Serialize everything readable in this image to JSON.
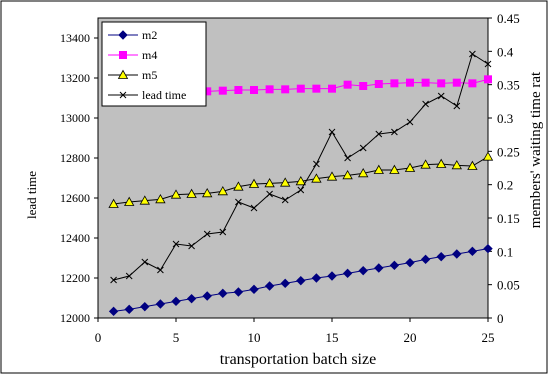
{
  "chart_data": {
    "type": "line",
    "xlabel": "transportation batch size",
    "ylabel_left": "lead time",
    "ylabel_right": "members' waiting time rat",
    "x_ticks": [
      "0",
      "5",
      "10",
      "15",
      "20",
      "25"
    ],
    "y_left_ticks": [
      "12000",
      "12200",
      "12400",
      "12600",
      "12800",
      "13000",
      "13200",
      "13400"
    ],
    "y_right_ticks": [
      "0",
      "0.05",
      "0.1",
      "0.15",
      "0.2",
      "0.25",
      "0.3",
      "0.35",
      "0.4",
      "0.45"
    ],
    "xlim": [
      0,
      25
    ],
    "ylim_left": [
      12000,
      13500
    ],
    "ylim_right": [
      0,
      0.45
    ],
    "grid": false,
    "plot_background": "#c0c0c0",
    "legend_position": "top-left",
    "series": [
      {
        "name": "m2",
        "axis": "right",
        "color": "#000080",
        "marker": "diamond",
        "x": [
          1,
          2,
          3,
          4,
          5,
          6,
          7,
          8,
          9,
          10,
          11,
          12,
          13,
          14,
          15,
          16,
          17,
          18,
          19,
          20,
          21,
          22,
          23,
          24,
          25
        ],
        "values": [
          0.01,
          0.013,
          0.017,
          0.021,
          0.025,
          0.029,
          0.033,
          0.037,
          0.039,
          0.043,
          0.048,
          0.052,
          0.056,
          0.06,
          0.063,
          0.067,
          0.071,
          0.075,
          0.079,
          0.083,
          0.088,
          0.092,
          0.096,
          0.1,
          0.104
        ]
      },
      {
        "name": "m4",
        "axis": "right",
        "color": "#ff00ff",
        "marker": "square",
        "x": [
          7,
          8,
          9,
          10,
          11,
          12,
          13,
          14,
          15,
          16,
          17,
          18,
          19,
          20,
          21,
          22,
          23,
          24,
          25
        ],
        "values": [
          0.34,
          0.341,
          0.342,
          0.342,
          0.343,
          0.343,
          0.344,
          0.344,
          0.344,
          0.35,
          0.348,
          0.351,
          0.352,
          0.353,
          0.353,
          0.352,
          0.353,
          0.352,
          0.358
        ]
      },
      {
        "name": "m5",
        "axis": "right",
        "color": "#ffff00",
        "marker": "triangle",
        "x": [
          1,
          2,
          3,
          4,
          5,
          6,
          7,
          8,
          9,
          10,
          11,
          12,
          13,
          14,
          15,
          16,
          17,
          18,
          19,
          20,
          21,
          22,
          23,
          24,
          25
        ],
        "values": [
          0.171,
          0.174,
          0.176,
          0.178,
          0.185,
          0.186,
          0.187,
          0.19,
          0.197,
          0.201,
          0.202,
          0.203,
          0.205,
          0.209,
          0.212,
          0.214,
          0.217,
          0.222,
          0.222,
          0.225,
          0.23,
          0.231,
          0.229,
          0.228,
          0.242
        ]
      },
      {
        "name": "lead time",
        "axis": "left",
        "color": "#000000",
        "marker": "x",
        "x": [
          1,
          2,
          3,
          4,
          5,
          6,
          7,
          8,
          9,
          10,
          11,
          12,
          13,
          14,
          15,
          16,
          17,
          18,
          19,
          20,
          21,
          22,
          23,
          24,
          25
        ],
        "values": [
          12190,
          12210,
          12280,
          12240,
          12370,
          12360,
          12420,
          12430,
          12580,
          12550,
          12620,
          12590,
          12640,
          12770,
          12930,
          12800,
          12850,
          12920,
          12930,
          12980,
          13070,
          13110,
          13060,
          13320,
          13270
        ]
      }
    ]
  }
}
